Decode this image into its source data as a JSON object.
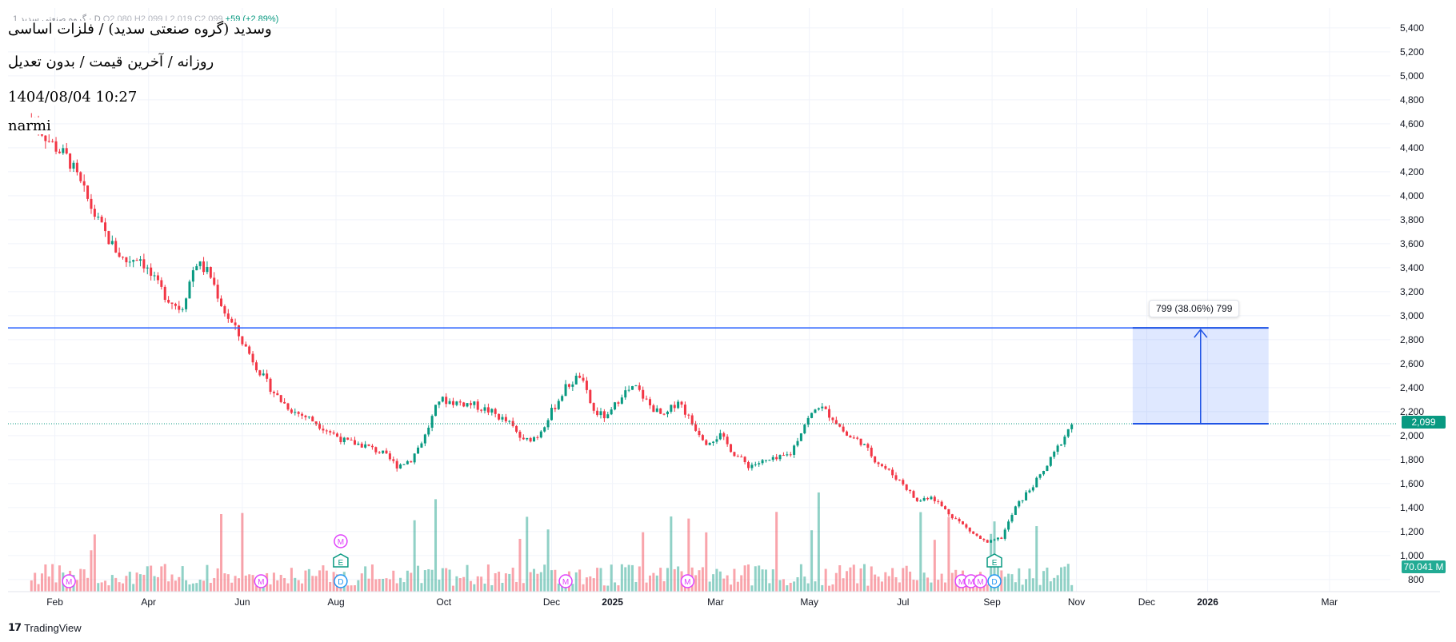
{
  "legend": {
    "symbol_line": "1 گروه صنعتی سدید · D",
    "ohlc": "O2,080  H2,099  L2,019  C2,099",
    "change": "+59 (+2.89%)"
  },
  "overlay": {
    "title": "وسدید (گروه صنعتی سدید) / فلزات اساسی",
    "subtitle": "روزانه / آخرین قیمت / بدون تعدیل",
    "datetime": "1404/08/04 10:27",
    "author": "narmi"
  },
  "brand": {
    "name": "TradingView"
  },
  "price_label": "2,099",
  "volume_label": "70.041 M",
  "measure_label": "799 (38.06%) 799",
  "colors": {
    "up": "#089981",
    "down": "#f23645",
    "line": "#2962ff",
    "measure": "#1e53e5"
  },
  "chart_data": {
    "type": "candlestick",
    "x_ticks": [
      {
        "label": "Feb",
        "t": 0.5
      },
      {
        "label": "Apr",
        "t": 2.5
      },
      {
        "label": "Jun",
        "t": 4.5
      },
      {
        "label": "Aug",
        "t": 6.5
      },
      {
        "label": "Oct",
        "t": 8.8
      },
      {
        "label": "Dec",
        "t": 11.1
      },
      {
        "label": "2025",
        "t": 12.4,
        "year": true
      },
      {
        "label": "Mar",
        "t": 14.6
      },
      {
        "label": "May",
        "t": 16.6
      },
      {
        "label": "Jul",
        "t": 18.6
      },
      {
        "label": "Sep",
        "t": 20.5
      },
      {
        "label": "Nov",
        "t": 22.3
      },
      {
        "label": "Dec",
        "t": 23.8
      },
      {
        "label": "2026",
        "t": 25.1,
        "year": true
      },
      {
        "label": "Mar",
        "t": 27.7
      }
    ],
    "y_ticks": [
      5400,
      5200,
      5000,
      4800,
      4600,
      4400,
      4200,
      4000,
      3800,
      3600,
      3400,
      3200,
      3000,
      2800,
      2600,
      2400,
      2200,
      2000,
      1800,
      1600,
      1400,
      1200,
      1000,
      800
    ],
    "y_range": [
      800,
      5400
    ],
    "x_range": [
      -0.5,
      29
    ],
    "price_path": [
      [
        0,
        4650
      ],
      [
        0.4,
        4450
      ],
      [
        0.8,
        4300
      ],
      [
        1.1,
        4050
      ],
      [
        1.4,
        3800
      ],
      [
        1.7,
        3600
      ],
      [
        2.0,
        3450
      ],
      [
        2.3,
        3500
      ],
      [
        2.6,
        3300
      ],
      [
        2.9,
        3150
      ],
      [
        3.2,
        3050
      ],
      [
        3.5,
        3450
      ],
      [
        3.8,
        3350
      ],
      [
        4.1,
        3050
      ],
      [
        4.4,
        2850
      ],
      [
        4.7,
        2650
      ],
      [
        5.0,
        2450
      ],
      [
        5.3,
        2300
      ],
      [
        5.6,
        2200
      ],
      [
        5.9,
        2150
      ],
      [
        6.3,
        2050
      ],
      [
        6.7,
        1950
      ],
      [
        7.1,
        1920
      ],
      [
        7.5,
        1850
      ],
      [
        7.8,
        1750
      ],
      [
        8.1,
        1800
      ],
      [
        8.4,
        2000
      ],
      [
        8.7,
        2300
      ],
      [
        9.0,
        2280
      ],
      [
        9.4,
        2260
      ],
      [
        9.8,
        2200
      ],
      [
        10.2,
        2100
      ],
      [
        10.5,
        1950
      ],
      [
        10.8,
        2000
      ],
      [
        11.1,
        2200
      ],
      [
        11.4,
        2400
      ],
      [
        11.7,
        2500
      ],
      [
        12.0,
        2200
      ],
      [
        12.3,
        2150
      ],
      [
        12.6,
        2350
      ],
      [
        12.9,
        2400
      ],
      [
        13.2,
        2250
      ],
      [
        13.5,
        2150
      ],
      [
        13.8,
        2300
      ],
      [
        14.1,
        2100
      ],
      [
        14.4,
        1950
      ],
      [
        14.7,
        2000
      ],
      [
        15.0,
        1850
      ],
      [
        15.3,
        1750
      ],
      [
        15.6,
        1780
      ],
      [
        15.9,
        1800
      ],
      [
        16.2,
        1850
      ],
      [
        16.5,
        2100
      ],
      [
        16.8,
        2250
      ],
      [
        17.1,
        2150
      ],
      [
        17.4,
        2000
      ],
      [
        17.7,
        1950
      ],
      [
        18.0,
        1800
      ],
      [
        18.3,
        1700
      ],
      [
        18.6,
        1600
      ],
      [
        18.9,
        1450
      ],
      [
        19.2,
        1500
      ],
      [
        19.5,
        1380
      ],
      [
        19.8,
        1280
      ],
      [
        20.1,
        1180
      ],
      [
        20.4,
        1100
      ],
      [
        20.7,
        1150
      ],
      [
        21.0,
        1400
      ],
      [
        21.3,
        1550
      ],
      [
        21.6,
        1700
      ],
      [
        21.9,
        1900
      ],
      [
        22.2,
        2099
      ]
    ],
    "volume_max_millions": 120,
    "horizontal_line": 2898,
    "current_price": 2099,
    "measure": {
      "from": 2099,
      "to": 2898,
      "t_start": 23.5,
      "t_end": 26.4
    }
  }
}
